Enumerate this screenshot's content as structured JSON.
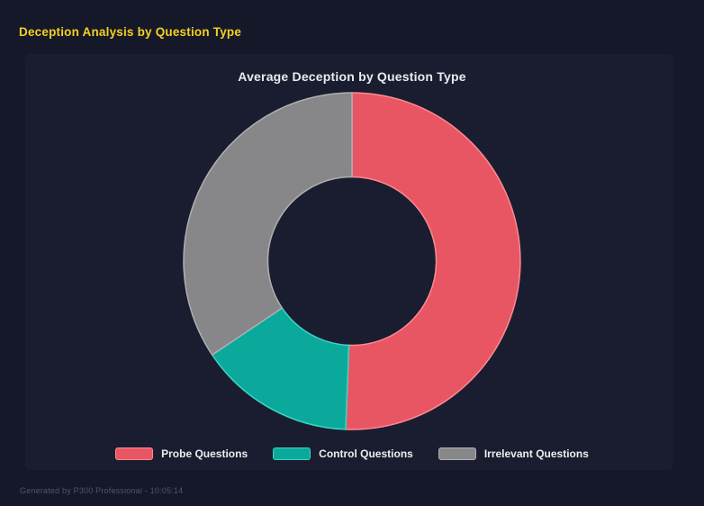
{
  "page": {
    "heading": "Deception Analysis by Question Type",
    "footer": "Generated by P300 Professional - 10:05:14"
  },
  "chart_data": {
    "type": "doughnut",
    "title": "Average Deception by Question Type",
    "labels": [
      "Probe Questions",
      "Control Questions",
      "Irrelevant Questions"
    ],
    "values": [
      50.6,
      15.0,
      34.4
    ],
    "value_note": "percent share of ring, estimated from arc angles (no numeric labels are rendered in the chart)",
    "colors": [
      "#E85563",
      "#0AA99C",
      "#87878A"
    ],
    "border_colors": [
      "#FF8A93",
      "#3BD4C6",
      "#AFAFB2"
    ],
    "cutout_ratio": 0.5,
    "start_angle_deg": 0,
    "legend_position": "bottom"
  },
  "theme": {
    "page_bg": "#151828",
    "panel_bg": "#1A1D2F",
    "heading_color": "#F5D020",
    "title_color": "#E9EAEE",
    "legend_text_color": "#EDEDEF",
    "footer_color": "#4E5470"
  }
}
